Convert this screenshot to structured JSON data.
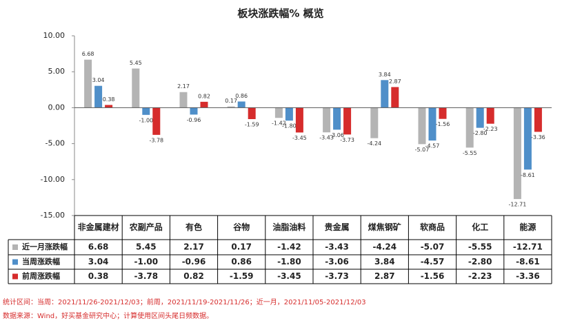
{
  "chart_data": {
    "type": "bar",
    "title": "板块涨跌幅% 概览",
    "categories": [
      "非金属建材",
      "农副产品",
      "有色",
      "谷物",
      "油脂油料",
      "贵金属",
      "煤焦钢矿",
      "软商品",
      "化工",
      "能源"
    ],
    "series": [
      {
        "name": "近一月涨跌幅",
        "color": "#b4b4b4",
        "values": [
          6.68,
          5.45,
          2.17,
          0.17,
          -1.42,
          -3.43,
          -4.24,
          -5.07,
          -5.55,
          -12.71
        ],
        "value_labels": [
          "6.68",
          "5.45",
          "2.17",
          "0.17",
          "-1.42",
          "-3.43",
          "-4.24",
          "-5.07",
          "-5.55",
          "-12.71"
        ]
      },
      {
        "name": "当周涨跌幅",
        "color": "#4f8fc9",
        "values": [
          3.04,
          -1.0,
          -0.96,
          0.86,
          -1.8,
          -3.06,
          3.84,
          -4.57,
          -2.8,
          -8.61
        ],
        "value_labels": [
          "3.04",
          "-1.00",
          "-0.96",
          "0.86",
          "-1.80",
          "-3.06",
          "3.84",
          "-4.57",
          "-2.80",
          "-8.61"
        ]
      },
      {
        "name": "前周涨跌幅",
        "color": "#d62c2c",
        "values": [
          0.38,
          -3.78,
          0.82,
          -1.59,
          -3.45,
          -3.73,
          2.87,
          -1.56,
          -2.23,
          -3.36
        ],
        "value_labels": [
          "0.38",
          "-3.78",
          "0.82",
          "-1.59",
          "-3.45",
          "-3.73",
          "2.87",
          "-1.56",
          "-2.23",
          "-3.36"
        ]
      }
    ],
    "ylim": [
      -15,
      10
    ],
    "yticks": [
      {
        "value": 10,
        "label": "10.00"
      },
      {
        "value": 5,
        "label": "5.00"
      },
      {
        "value": 0,
        "label": "0.00"
      },
      {
        "value": -5,
        "label": "-5.00"
      },
      {
        "value": -10,
        "label": "-10.00"
      },
      {
        "value": -15,
        "label": "-15.00"
      }
    ],
    "notes": [
      "统计区间：当周：2021/11/26-2021/12/03；前周，2021/11/19-2021/11/26；近一月，2021/11/05-2021/12/03",
      "数据来源：Wind，好买基金研究中心；计算使用区间头尾日频数据。"
    ]
  }
}
